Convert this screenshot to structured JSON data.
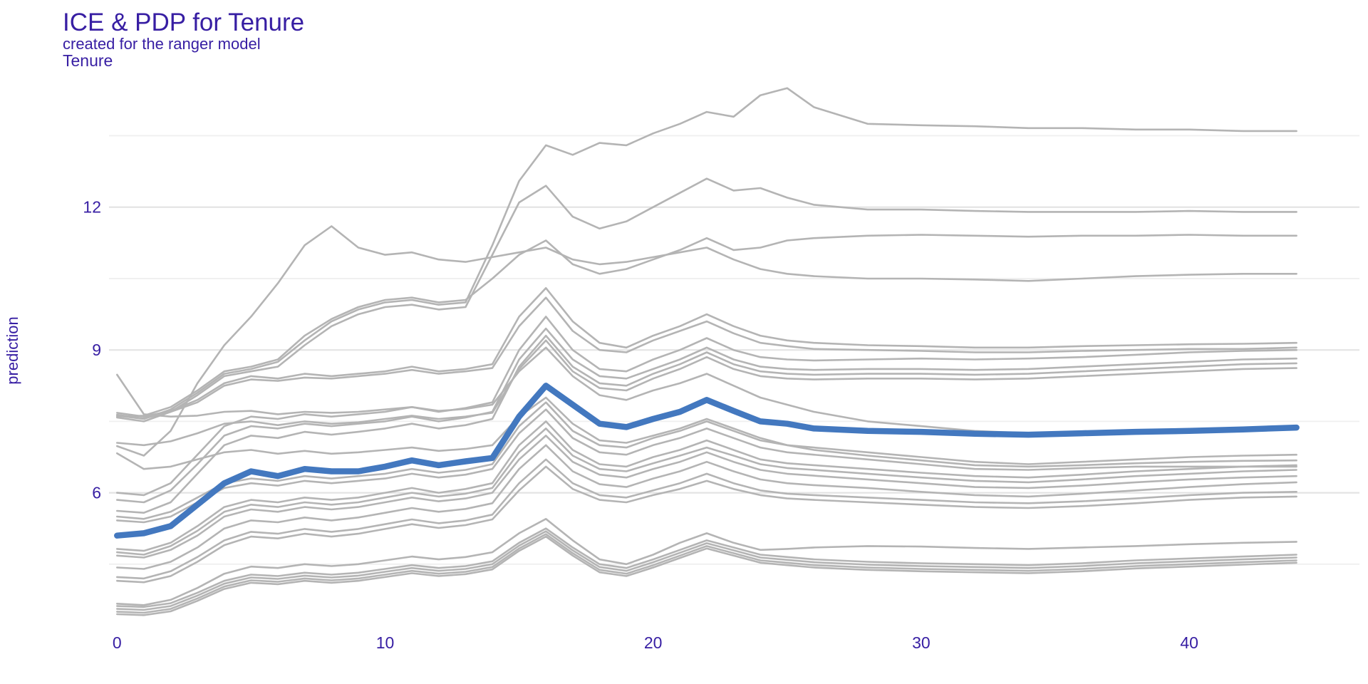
{
  "header": {
    "title": "ICE & PDP for Tenure",
    "subtitle": "created for the ranger model",
    "facet_label": "Tenure"
  },
  "axes": {
    "y_label": "prediction",
    "x_tick_labels": [
      "0",
      "10",
      "20",
      "30",
      "40"
    ],
    "y_tick_labels": [
      "6",
      "9",
      "12"
    ]
  },
  "colors": {
    "text": "#371ea3",
    "pdp_line": "#4378bf",
    "ice_line": "#b4b4b4",
    "grid_major": "#e4e4e4",
    "grid_minor": "#efefef",
    "background": "#ffffff"
  },
  "chart_data": {
    "type": "line",
    "title": "ICE & PDP for Tenure",
    "subtitle": "created for the ranger model",
    "facet": "Tenure",
    "xlabel": "",
    "ylabel": "prediction",
    "legend": "none",
    "grid": "horizontal-only",
    "xlim": [
      -0.3,
      46.35
    ],
    "ylim": [
      3.21,
      14.9
    ],
    "x_ticks": [
      0,
      10,
      20,
      30,
      40
    ],
    "y_ticks": [
      6,
      9,
      12
    ],
    "y_minor_gridlines": [
      4.5,
      7.5,
      10.5,
      13.5
    ],
    "x": [
      0,
      1,
      2,
      3,
      4,
      5,
      6,
      7,
      8,
      9,
      10,
      11,
      12,
      13,
      14,
      15,
      16,
      17,
      18,
      19,
      20,
      21,
      22,
      23,
      24,
      25,
      26,
      28,
      30,
      32,
      34,
      36,
      38,
      40,
      42,
      44
    ],
    "series": [
      {
        "name": "PDP",
        "type": "pdp",
        "values": [
          5.1,
          5.15,
          5.3,
          5.75,
          6.2,
          6.45,
          6.35,
          6.5,
          6.45,
          6.45,
          6.55,
          6.68,
          6.58,
          6.66,
          6.73,
          7.6,
          8.25,
          7.85,
          7.45,
          7.38,
          7.55,
          7.7,
          7.95,
          7.72,
          7.5,
          7.45,
          7.35,
          7.3,
          7.28,
          7.24,
          7.22,
          7.25,
          7.28,
          7.3,
          7.33,
          7.37
        ]
      },
      {
        "name": "ICE 1",
        "type": "ice",
        "values": [
          7.62,
          7.55,
          7.75,
          8.1,
          8.5,
          8.6,
          8.75,
          9.2,
          9.6,
          9.85,
          10.0,
          10.05,
          9.95,
          10.0,
          11.2,
          12.55,
          13.3,
          13.1,
          13.35,
          13.3,
          13.55,
          13.75,
          14.0,
          13.9,
          14.35,
          14.5,
          14.1,
          13.75,
          13.72,
          13.7,
          13.66,
          13.66,
          13.63,
          13.63,
          13.6,
          13.6
        ]
      },
      {
        "name": "ICE 2",
        "type": "ice",
        "values": [
          7.58,
          7.5,
          7.7,
          8.05,
          8.45,
          8.55,
          8.65,
          9.1,
          9.5,
          9.75,
          9.9,
          9.95,
          9.85,
          9.9,
          11.0,
          12.1,
          12.45,
          11.8,
          11.55,
          11.7,
          12.0,
          12.3,
          12.6,
          12.35,
          12.4,
          12.2,
          12.05,
          11.95,
          11.95,
          11.92,
          11.9,
          11.9,
          11.9,
          11.92,
          11.9,
          11.9
        ]
      },
      {
        "name": "ICE 3",
        "type": "ice",
        "values": [
          6.98,
          6.78,
          7.3,
          8.3,
          9.1,
          9.7,
          10.4,
          11.2,
          11.6,
          11.15,
          11.0,
          11.05,
          10.9,
          10.85,
          10.95,
          11.05,
          11.15,
          10.9,
          10.8,
          10.85,
          10.95,
          11.05,
          11.15,
          10.9,
          10.7,
          10.6,
          10.55,
          10.5,
          10.5,
          10.48,
          10.45,
          10.5,
          10.55,
          10.58,
          10.6,
          10.6
        ]
      },
      {
        "name": "ICE 4",
        "type": "ice",
        "values": [
          7.6,
          7.62,
          7.8,
          8.15,
          8.55,
          8.65,
          8.8,
          9.3,
          9.65,
          9.9,
          10.05,
          10.1,
          10.0,
          10.05,
          10.5,
          11.0,
          11.3,
          10.8,
          10.6,
          10.7,
          10.9,
          11.1,
          11.35,
          11.1,
          11.15,
          11.3,
          11.35,
          11.4,
          11.42,
          11.4,
          11.38,
          11.4,
          11.4,
          11.42,
          11.4,
          11.4
        ]
      },
      {
        "name": "ICE 5",
        "type": "ice",
        "values": [
          7.68,
          7.6,
          7.72,
          7.95,
          8.3,
          8.45,
          8.4,
          8.5,
          8.45,
          8.5,
          8.55,
          8.65,
          8.55,
          8.6,
          8.7,
          9.7,
          10.3,
          9.6,
          9.15,
          9.05,
          9.3,
          9.5,
          9.75,
          9.5,
          9.3,
          9.2,
          9.15,
          9.1,
          9.08,
          9.05,
          9.05,
          9.08,
          9.1,
          9.12,
          9.13,
          9.15
        ]
      },
      {
        "name": "ICE 6",
        "type": "ice",
        "values": [
          7.64,
          7.56,
          7.7,
          7.9,
          8.25,
          8.38,
          8.35,
          8.42,
          8.4,
          8.45,
          8.5,
          8.58,
          8.5,
          8.55,
          8.62,
          9.5,
          10.1,
          9.4,
          9.0,
          8.95,
          9.2,
          9.4,
          9.6,
          9.35,
          9.15,
          9.08,
          9.02,
          9.0,
          8.98,
          8.95,
          8.95,
          8.98,
          9.0,
          9.02,
          9.02,
          9.05
        ]
      },
      {
        "name": "ICE 7",
        "type": "ice",
        "values": [
          6.0,
          5.95,
          6.2,
          6.8,
          7.4,
          7.6,
          7.55,
          7.65,
          7.6,
          7.65,
          7.7,
          7.8,
          7.7,
          7.78,
          7.9,
          9.0,
          9.7,
          9.0,
          8.6,
          8.55,
          8.8,
          9.0,
          9.25,
          9.0,
          8.85,
          8.8,
          8.78,
          8.8,
          8.82,
          8.8,
          8.82,
          8.85,
          8.9,
          8.95,
          8.98,
          9.0
        ]
      },
      {
        "name": "ICE 8",
        "type": "ice",
        "values": [
          5.85,
          5.8,
          6.05,
          6.6,
          7.2,
          7.4,
          7.35,
          7.45,
          7.4,
          7.45,
          7.5,
          7.6,
          7.5,
          7.58,
          7.7,
          8.8,
          9.45,
          8.8,
          8.45,
          8.4,
          8.6,
          8.8,
          9.05,
          8.8,
          8.65,
          8.6,
          8.58,
          8.6,
          8.6,
          8.58,
          8.6,
          8.65,
          8.7,
          8.75,
          8.8,
          8.82
        ]
      },
      {
        "name": "ICE 9",
        "type": "ice",
        "values": [
          5.62,
          5.58,
          5.8,
          6.4,
          7.0,
          7.2,
          7.15,
          7.28,
          7.22,
          7.28,
          7.35,
          7.45,
          7.35,
          7.42,
          7.55,
          8.65,
          9.3,
          8.65,
          8.3,
          8.25,
          8.5,
          8.7,
          8.95,
          8.7,
          8.55,
          8.5,
          8.48,
          8.5,
          8.5,
          8.48,
          8.5,
          8.55,
          8.6,
          8.65,
          8.7,
          8.72
        ]
      },
      {
        "name": "ICE 10",
        "type": "ice",
        "values": [
          8.48,
          7.65,
          7.6,
          7.62,
          7.7,
          7.72,
          7.65,
          7.7,
          7.68,
          7.7,
          7.75,
          7.8,
          7.72,
          7.76,
          7.85,
          8.55,
          9.05,
          8.45,
          8.05,
          7.95,
          8.15,
          8.3,
          8.5,
          8.25,
          8.0,
          7.85,
          7.7,
          7.5,
          7.4,
          7.3,
          7.25,
          7.27,
          7.3,
          7.32,
          7.33,
          7.35
        ]
      },
      {
        "name": "ICE 11",
        "type": "ice",
        "values": [
          7.05,
          7.0,
          7.08,
          7.25,
          7.45,
          7.5,
          7.42,
          7.5,
          7.45,
          7.48,
          7.55,
          7.62,
          7.55,
          7.6,
          7.68,
          8.6,
          9.2,
          8.55,
          8.2,
          8.15,
          8.4,
          8.6,
          8.85,
          8.6,
          8.45,
          8.4,
          8.38,
          8.4,
          8.4,
          8.38,
          8.4,
          8.45,
          8.5,
          8.55,
          8.6,
          8.62
        ]
      },
      {
        "name": "ICE 12",
        "type": "ice",
        "values": [
          6.83,
          6.5,
          6.55,
          6.7,
          6.85,
          6.9,
          6.82,
          6.88,
          6.82,
          6.85,
          6.9,
          6.95,
          6.88,
          6.92,
          7.0,
          7.6,
          8.0,
          7.45,
          7.1,
          7.05,
          7.2,
          7.35,
          7.55,
          7.35,
          7.15,
          7.0,
          6.9,
          6.78,
          6.68,
          6.58,
          6.55,
          6.58,
          6.62,
          6.65,
          6.67,
          6.68
        ]
      },
      {
        "name": "ICE 13",
        "type": "ice",
        "values": [
          5.5,
          5.45,
          5.6,
          5.9,
          6.2,
          6.3,
          6.25,
          6.35,
          6.3,
          6.35,
          6.4,
          6.5,
          6.42,
          6.48,
          6.6,
          7.4,
          7.9,
          7.3,
          7.0,
          6.95,
          7.15,
          7.3,
          7.5,
          7.3,
          7.1,
          7.0,
          6.95,
          6.85,
          6.75,
          6.65,
          6.6,
          6.65,
          6.7,
          6.75,
          6.78,
          6.8
        ]
      },
      {
        "name": "ICE 14",
        "type": "ice",
        "values": [
          5.42,
          5.38,
          5.5,
          5.8,
          6.1,
          6.2,
          6.15,
          6.25,
          6.2,
          6.25,
          6.3,
          6.4,
          6.32,
          6.38,
          6.5,
          7.25,
          7.75,
          7.15,
          6.85,
          6.8,
          7.0,
          7.15,
          7.35,
          7.15,
          6.95,
          6.85,
          6.8,
          6.7,
          6.6,
          6.5,
          6.48,
          6.52,
          6.55,
          6.55,
          6.55,
          6.55
        ]
      },
      {
        "name": "ICE 15",
        "type": "ice",
        "values": [
          4.82,
          4.78,
          4.95,
          5.3,
          5.7,
          5.85,
          5.8,
          5.9,
          5.85,
          5.9,
          6.0,
          6.1,
          6.0,
          6.08,
          6.2,
          7.0,
          7.5,
          6.9,
          6.6,
          6.55,
          6.75,
          6.9,
          7.1,
          6.9,
          6.7,
          6.62,
          6.58,
          6.5,
          6.42,
          6.35,
          6.32,
          6.38,
          6.45,
          6.5,
          6.55,
          6.58
        ]
      },
      {
        "name": "ICE 16",
        "type": "ice",
        "values": [
          4.75,
          4.7,
          4.88,
          5.2,
          5.6,
          5.75,
          5.7,
          5.8,
          5.75,
          5.8,
          5.9,
          6.0,
          5.92,
          5.98,
          6.1,
          6.85,
          7.35,
          6.78,
          6.5,
          6.45,
          6.62,
          6.78,
          6.95,
          6.78,
          6.6,
          6.52,
          6.48,
          6.4,
          6.32,
          6.25,
          6.22,
          6.28,
          6.35,
          6.4,
          6.45,
          6.48
        ]
      },
      {
        "name": "ICE 17",
        "type": "ice",
        "values": [
          4.68,
          4.64,
          4.8,
          5.1,
          5.5,
          5.65,
          5.6,
          5.7,
          5.65,
          5.7,
          5.8,
          5.9,
          5.82,
          5.88,
          6.0,
          6.7,
          7.2,
          6.65,
          6.38,
          6.32,
          6.5,
          6.65,
          6.85,
          6.65,
          6.48,
          6.4,
          6.36,
          6.28,
          6.2,
          6.12,
          6.1,
          6.15,
          6.22,
          6.28,
          6.32,
          6.35
        ]
      },
      {
        "name": "ICE 18",
        "type": "ice",
        "values": [
          4.43,
          4.4,
          4.55,
          4.85,
          5.25,
          5.42,
          5.38,
          5.48,
          5.42,
          5.48,
          5.58,
          5.68,
          5.6,
          5.66,
          5.78,
          6.5,
          7.0,
          6.45,
          6.18,
          6.12,
          6.3,
          6.45,
          6.65,
          6.45,
          6.28,
          6.2,
          6.16,
          6.1,
          6.02,
          5.95,
          5.92,
          5.98,
          6.05,
          6.12,
          6.18,
          6.22
        ]
      },
      {
        "name": "ICE 19",
        "type": "ice",
        "values": [
          4.23,
          4.2,
          4.35,
          4.65,
          5.0,
          5.18,
          5.14,
          5.24,
          5.18,
          5.24,
          5.34,
          5.44,
          5.36,
          5.42,
          5.54,
          6.2,
          6.7,
          6.2,
          5.95,
          5.9,
          6.05,
          6.2,
          6.4,
          6.2,
          6.05,
          5.98,
          5.95,
          5.9,
          5.85,
          5.8,
          5.78,
          5.82,
          5.88,
          5.95,
          6.0,
          6.02
        ]
      },
      {
        "name": "ICE 20",
        "type": "ice",
        "values": [
          4.15,
          4.12,
          4.25,
          4.55,
          4.9,
          5.08,
          5.04,
          5.14,
          5.08,
          5.14,
          5.24,
          5.34,
          5.26,
          5.32,
          5.44,
          6.05,
          6.55,
          6.08,
          5.85,
          5.8,
          5.95,
          6.08,
          6.25,
          6.08,
          5.95,
          5.88,
          5.85,
          5.8,
          5.75,
          5.7,
          5.68,
          5.72,
          5.78,
          5.85,
          5.9,
          5.92
        ]
      },
      {
        "name": "ICE 21",
        "type": "ice",
        "values": [
          3.67,
          3.64,
          3.75,
          4.0,
          4.3,
          4.45,
          4.42,
          4.5,
          4.46,
          4.5,
          4.58,
          4.66,
          4.6,
          4.65,
          4.75,
          5.15,
          5.45,
          5.0,
          4.6,
          4.5,
          4.7,
          4.95,
          5.15,
          4.95,
          4.8,
          4.82,
          4.85,
          4.88,
          4.87,
          4.84,
          4.82,
          4.85,
          4.88,
          4.92,
          4.95,
          4.97
        ]
      },
      {
        "name": "ICE 22",
        "type": "ice",
        "values": [
          3.62,
          3.6,
          3.68,
          3.9,
          4.15,
          4.28,
          4.25,
          4.32,
          4.28,
          4.32,
          4.4,
          4.48,
          4.42,
          4.46,
          4.56,
          4.95,
          5.25,
          4.85,
          4.5,
          4.42,
          4.6,
          4.8,
          5.0,
          4.85,
          4.7,
          4.65,
          4.6,
          4.55,
          4.52,
          4.5,
          4.48,
          4.52,
          4.58,
          4.62,
          4.66,
          4.7
        ]
      },
      {
        "name": "ICE 23",
        "type": "ice",
        "values": [
          3.56,
          3.54,
          3.62,
          3.84,
          4.09,
          4.22,
          4.19,
          4.26,
          4.22,
          4.26,
          4.34,
          4.42,
          4.36,
          4.4,
          4.5,
          4.89,
          5.19,
          4.79,
          4.44,
          4.36,
          4.54,
          4.74,
          4.94,
          4.79,
          4.64,
          4.59,
          4.54,
          4.49,
          4.46,
          4.44,
          4.42,
          4.46,
          4.52,
          4.56,
          4.6,
          4.64
        ]
      },
      {
        "name": "ICE 24",
        "type": "ice",
        "values": [
          3.5,
          3.48,
          3.56,
          3.78,
          4.03,
          4.16,
          4.13,
          4.2,
          4.16,
          4.2,
          4.28,
          4.36,
          4.3,
          4.34,
          4.44,
          4.83,
          5.13,
          4.73,
          4.38,
          4.3,
          4.48,
          4.68,
          4.88,
          4.73,
          4.58,
          4.53,
          4.48,
          4.43,
          4.4,
          4.38,
          4.36,
          4.4,
          4.46,
          4.5,
          4.54,
          4.58
        ]
      },
      {
        "name": "ICE 25",
        "type": "ice",
        "values": [
          3.45,
          3.43,
          3.51,
          3.73,
          3.98,
          4.11,
          4.08,
          4.15,
          4.11,
          4.15,
          4.23,
          4.31,
          4.25,
          4.29,
          4.39,
          4.78,
          5.08,
          4.68,
          4.33,
          4.25,
          4.43,
          4.63,
          4.83,
          4.68,
          4.53,
          4.48,
          4.43,
          4.38,
          4.35,
          4.33,
          4.31,
          4.35,
          4.41,
          4.45,
          4.49,
          4.53
        ]
      }
    ]
  }
}
